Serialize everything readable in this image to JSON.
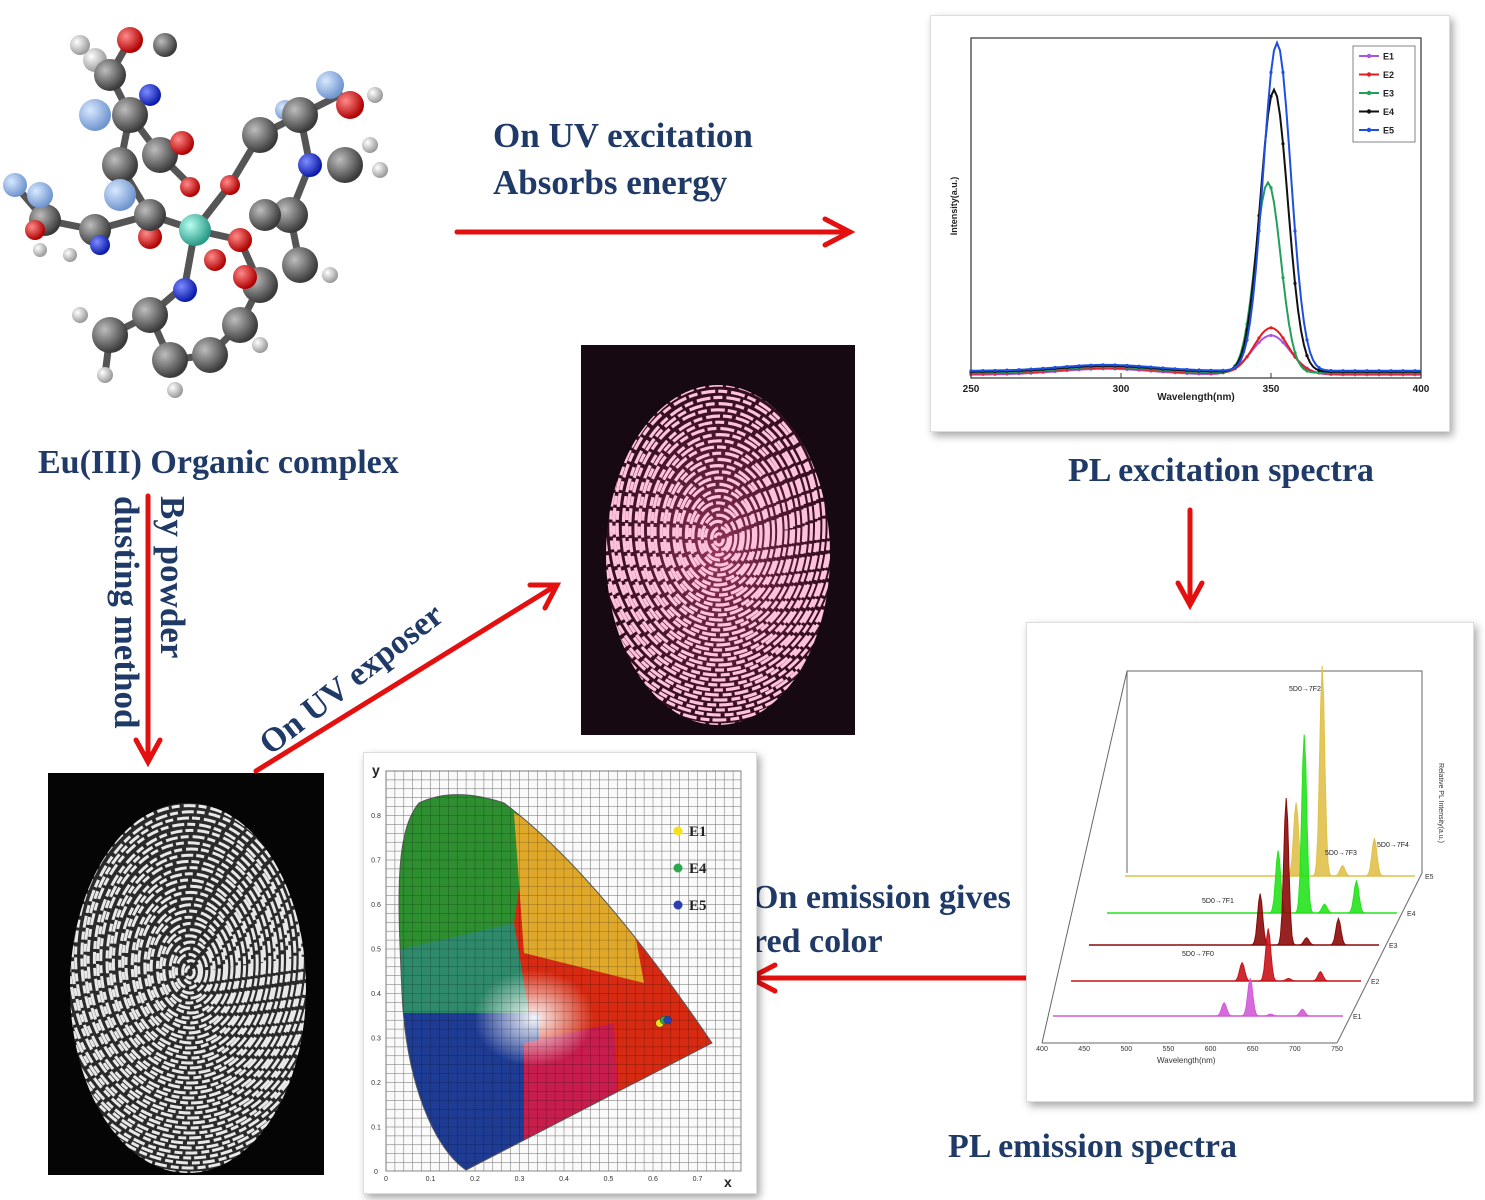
{
  "labels": {
    "uv_excitation_line1": "On UV excitation",
    "uv_excitation_line2": "Absorbs energy",
    "complex": "Eu(III) Organic complex",
    "excitation_title": "PL excitation spectra",
    "powder_line1": "By powder",
    "powder_line2": "dusting method",
    "uv_exposer": "On UV exposer",
    "emission_gives_line1": "On emission gives",
    "emission_gives_line2": "red color",
    "emission_title": "PL emission spectra"
  },
  "colors": {
    "arrow": "#e41010",
    "label": "#1f3a66",
    "E1": "#a855e8",
    "E2": "#e21e1e",
    "E3": "#22a05a",
    "E4": "#111111",
    "E5": "#1f4fe0"
  },
  "excitation_chart": {
    "ylabel": "Intensity(a.u.)",
    "xlabel": "Wavelength(nm)",
    "ticks": [
      "250",
      "300",
      "350",
      "400"
    ]
  },
  "chart_data": {
    "type": "line",
    "xlabel": "Wavelength(nm)",
    "ylabel": "Intensity(a.u.)",
    "xlim": [
      250,
      400
    ],
    "legend_position": "top-right",
    "series": [
      {
        "name": "E1",
        "peak_x": 350,
        "peak_y": 0.12
      },
      {
        "name": "E2",
        "peak_x": 350,
        "peak_y": 0.14
      },
      {
        "name": "E3",
        "peak_x": 349,
        "peak_y": 0.58
      },
      {
        "name": "E4",
        "peak_x": 351,
        "peak_y": 0.86
      },
      {
        "name": "E5",
        "peak_x": 352,
        "peak_y": 1.0
      }
    ]
  },
  "emission_chart": {
    "xlabel": "Wavelength(nm)",
    "ylabel": "Relative PL Intensity(a.u.)",
    "ticks": [
      "400",
      "450",
      "500",
      "550",
      "600",
      "650",
      "700",
      "750"
    ],
    "series_labels": [
      "E5",
      "E4",
      "E3",
      "E2",
      "E1"
    ],
    "transitions": [
      "5D0→7F2",
      "5D0→7F3",
      "5D0→7F4",
      "5D0→7F1",
      "5D0→7F0"
    ]
  },
  "cie_chart": {
    "xaxis": "x",
    "yaxis": "y",
    "xticks": [
      "0",
      "0.1",
      "0.2",
      "0.3",
      "0.4",
      "0.5",
      "0.6",
      "0.7"
    ],
    "yticks": [
      "0",
      "0.1",
      "0.2",
      "0.3",
      "0.4",
      "0.5",
      "0.6",
      "0.7",
      "0.8"
    ],
    "legend": [
      {
        "name": "E1",
        "color": "#f2e21a"
      },
      {
        "name": "E4",
        "color": "#2aa84a"
      },
      {
        "name": "E5",
        "color": "#2a3fb0"
      }
    ]
  }
}
